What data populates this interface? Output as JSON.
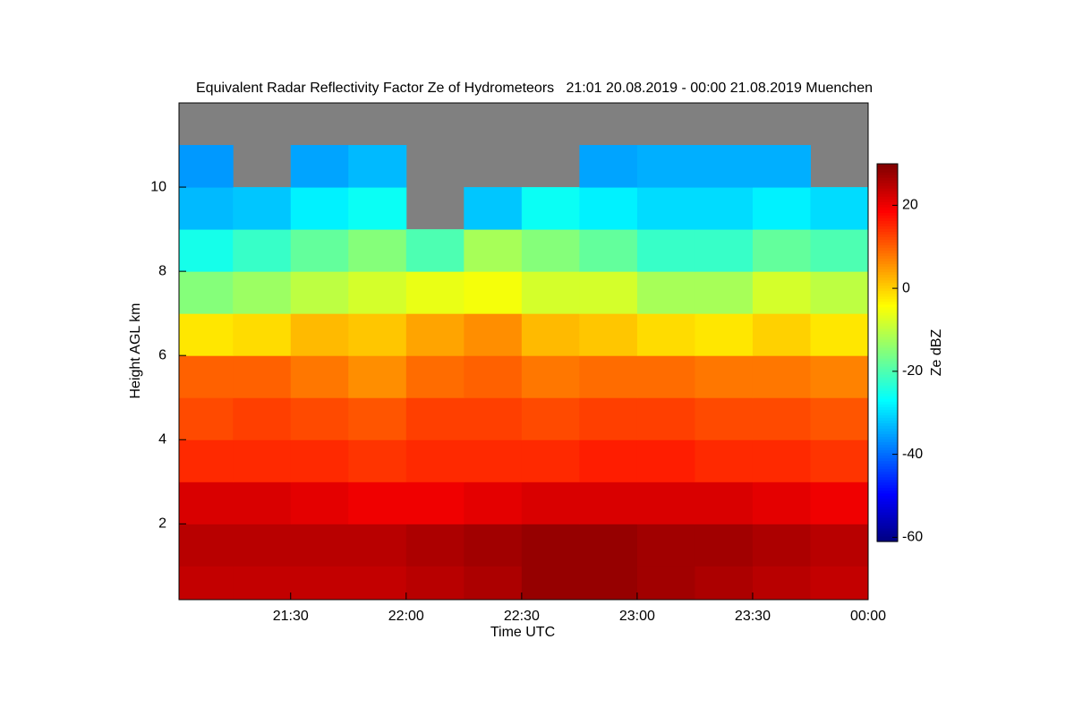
{
  "chart_data": {
    "type": "heatmap",
    "title": "Equivalent Radar Reflectivity Factor Ze of Hydrometeors   21:01 20.08.2019 - 00:00 21.08.2019 Muenchen",
    "x_label": "Time UTC",
    "y_label": "Height AGL km",
    "colorbar_label": "Ze dBZ",
    "xlim": [
      21.0167,
      24
    ],
    "xticks": [
      {
        "value": 21.5,
        "label": "21:30"
      },
      {
        "value": 22,
        "label": "22:00"
      },
      {
        "value": 22.5,
        "label": "22:30"
      },
      {
        "value": 23,
        "label": "23:00"
      },
      {
        "value": 23.5,
        "label": "23:30"
      },
      {
        "value": 24,
        "label": "00:00"
      }
    ],
    "ylim": [
      0.2,
      12
    ],
    "yticks": [
      2,
      4,
      6,
      8,
      10
    ],
    "clim": [
      -61,
      30
    ],
    "cticks": [
      20,
      0,
      -20,
      -40,
      -60
    ],
    "colormap": "jet",
    "nan_color": "#808080",
    "x_edges": [
      21.0167,
      21.25,
      21.5,
      21.75,
      22,
      22.25,
      22.5,
      22.75,
      23,
      23.25,
      23.5,
      23.75,
      24
    ],
    "y_edges": [
      0.2,
      1,
      2,
      3,
      4,
      5,
      6,
      7,
      8,
      9,
      10,
      11,
      12
    ],
    "z": [
      [
        24,
        24,
        24,
        24,
        25,
        26,
        28,
        28,
        27,
        26,
        25,
        24
      ],
      [
        25,
        25,
        25,
        25,
        26,
        27,
        28,
        28,
        27,
        27,
        26,
        25
      ],
      [
        22,
        22,
        21,
        20,
        20,
        21,
        22,
        22,
        22,
        22,
        21,
        20
      ],
      [
        15,
        15,
        15,
        14,
        15,
        15,
        15,
        16,
        16,
        15,
        15,
        14
      ],
      [
        12,
        13,
        12,
        11,
        13,
        13,
        12,
        13,
        13,
        12,
        12,
        11
      ],
      [
        10,
        10,
        8,
        6,
        9,
        10,
        8,
        9,
        9,
        8,
        8,
        7
      ],
      [
        -2,
        -1,
        2,
        1,
        4,
        6,
        2,
        1,
        -1,
        -2,
        0,
        -2
      ],
      [
        -15,
        -13,
        -10,
        -8,
        -6,
        -5,
        -8,
        -8,
        -12,
        -12,
        -8,
        -10
      ],
      [
        -25,
        -22,
        -18,
        -15,
        -20,
        -12,
        -15,
        -18,
        -22,
        -22,
        -18,
        -20
      ],
      [
        -33,
        -32,
        -28,
        -26,
        null,
        -32,
        -26,
        -28,
        -30,
        -30,
        -28,
        -30
      ],
      [
        -36,
        null,
        -35,
        -33,
        null,
        null,
        null,
        -35,
        -34,
        -34,
        -34,
        null
      ],
      [
        null,
        null,
        null,
        null,
        null,
        null,
        null,
        null,
        null,
        null,
        null,
        null
      ]
    ]
  }
}
